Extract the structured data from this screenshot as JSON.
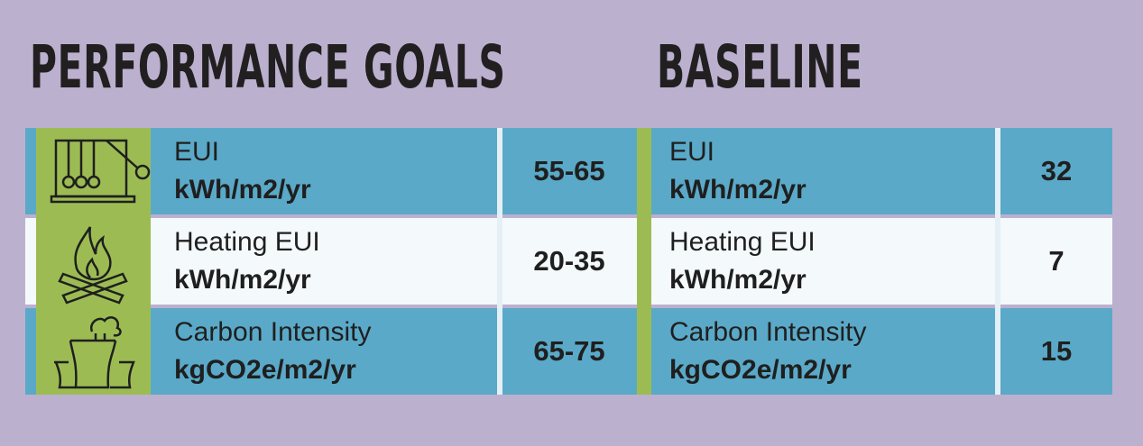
{
  "headings": {
    "performance_goals": "PERFORMANCE GOALS",
    "baseline": "BASELINE"
  },
  "rows": [
    {
      "icon": "newtons-cradle-icon",
      "metric": "EUI",
      "unit": "kWh/m2/yr",
      "goal": "55-65",
      "baseline_metric": "EUI",
      "baseline_unit": "kWh/m2/yr",
      "baseline_value": "32"
    },
    {
      "icon": "campfire-icon",
      "metric": "Heating EUI",
      "unit": "kWh/m2/yr",
      "goal": "20-35",
      "baseline_metric": "Heating EUI",
      "baseline_unit": "kWh/m2/yr",
      "baseline_value": "7"
    },
    {
      "icon": "smokestack-icon",
      "metric": "Carbon Intensity",
      "unit": "kgCO2e/m2/yr",
      "goal": "65-75",
      "baseline_metric": "Carbon Intensity",
      "baseline_unit": "kgCO2e/m2/yr",
      "baseline_value": "15"
    }
  ],
  "colors": {
    "background": "#bcb0cf",
    "row_blue": "#5aa9c8",
    "row_white": "#f4f9fc",
    "accent_green": "#9cbc53",
    "text": "#1f1f1f"
  }
}
